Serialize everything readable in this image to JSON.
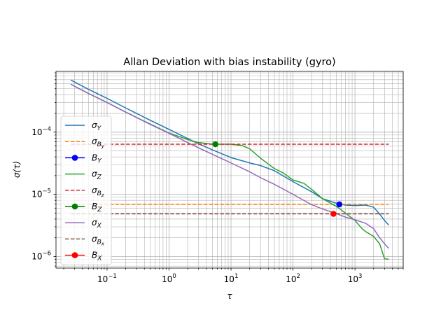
{
  "chart_data": {
    "type": "line",
    "title": "Allan Deviation with bias instability (gyro)",
    "xlabel": "τ",
    "ylabel": "σ(τ)",
    "xscale": "log",
    "yscale": "log",
    "xlim": [
      0.015,
      6000
    ],
    "ylim": [
      6.5e-07,
      0.00095
    ],
    "grid": "major and minor, both axes",
    "legend_position": "left",
    "x_ticks": [
      {
        "value": 0.1,
        "base": "10",
        "exp": "−1"
      },
      {
        "value": 1,
        "base": "10",
        "exp": "0"
      },
      {
        "value": 10,
        "base": "10",
        "exp": "1"
      },
      {
        "value": 100,
        "base": "10",
        "exp": "2"
      },
      {
        "value": 1000,
        "base": "10",
        "exp": "3"
      }
    ],
    "y_ticks": [
      {
        "value": 1e-06,
        "base": "10",
        "exp": "−6"
      },
      {
        "value": 1e-05,
        "base": "10",
        "exp": "−5"
      },
      {
        "value": 0.0001,
        "base": "10",
        "exp": "−4"
      }
    ],
    "series": [
      {
        "key": "sigma_y",
        "color": "#1f77b4",
        "style": "solid",
        "x": [
          0.026,
          0.05,
          0.1,
          0.2,
          0.5,
          1,
          2,
          3,
          5,
          10,
          20,
          30,
          50,
          100,
          200,
          300,
          500,
          700,
          1000,
          1500,
          2000,
          2500,
          3000,
          3500
        ],
        "y": [
          0.00069,
          0.00049,
          0.00035,
          0.000245,
          0.000155,
          0.000111,
          7.9e-05,
          6.5e-05,
          5.2e-05,
          3.9e-05,
          3.2e-05,
          2.9e-05,
          2.4e-05,
          1.6e-05,
          1.1e-05,
          8.5e-06,
          7.2e-06,
          6.7e-06,
          6.6e-06,
          6.7e-06,
          6.2e-06,
          4.8e-06,
          3.8e-06,
          3.2e-06
        ]
      },
      {
        "key": "sigma_by",
        "color": "#ff7f0e",
        "style": "dashed",
        "x": [
          0.026,
          3500
        ],
        "y": [
          6.9e-06,
          6.9e-06
        ]
      },
      {
        "key": "b_y",
        "color": "#0000ff",
        "style": "marker",
        "x": [
          560
        ],
        "y": [
          6.9e-06
        ]
      },
      {
        "key": "sigma_z",
        "color": "#2ca02c",
        "style": "solid",
        "x": [
          0.026,
          0.05,
          0.1,
          0.2,
          0.5,
          1,
          2,
          3,
          5,
          8,
          10,
          15,
          20,
          30,
          50,
          70,
          100,
          150,
          200,
          300,
          500,
          700,
          1000,
          1300,
          1500,
          2000,
          2500,
          3000,
          3500
        ],
        "y": [
          0.00059,
          0.00042,
          0.0003,
          0.00021,
          0.000135,
          9.7e-05,
          7.6e-05,
          6.8e-05,
          6.4e-05,
          6.4e-05,
          6.4e-05,
          6.1e-05,
          5.4e-05,
          3.8e-05,
          2.6e-05,
          2.2e-05,
          1.7e-05,
          1.5e-05,
          1.2e-05,
          8.5e-06,
          6.4e-06,
          5e-06,
          3.8e-06,
          2.8e-06,
          2.5e-06,
          2.1e-06,
          1.6e-06,
          9.2e-07,
          9e-07
        ]
      },
      {
        "key": "sigma_bz",
        "color": "#d62728",
        "style": "dashed",
        "x": [
          0.026,
          3500
        ],
        "y": [
          6.4e-05,
          6.4e-05
        ]
      },
      {
        "key": "b_z",
        "color": "#008000",
        "style": "marker",
        "x": [
          5.6
        ],
        "y": [
          6.4e-05
        ]
      },
      {
        "key": "sigma_x",
        "color": "#9467bd",
        "style": "solid",
        "x": [
          0.026,
          0.05,
          0.1,
          0.2,
          0.5,
          1,
          2,
          3,
          5,
          10,
          20,
          30,
          50,
          100,
          200,
          300,
          500,
          700,
          1000,
          1500,
          2000,
          2500,
          3000,
          3500
        ],
        "y": [
          0.00059,
          0.00042,
          0.0003,
          0.00021,
          0.000133,
          9.6e-05,
          6.8e-05,
          5.6e-05,
          4.4e-05,
          3.2e-05,
          2.3e-05,
          1.85e-05,
          1.45e-05,
          1e-05,
          6.8e-06,
          5.8e-06,
          4.9e-06,
          4.3e-06,
          3.9e-06,
          3.4e-06,
          2.8e-06,
          2e-06,
          1.6e-06,
          1.35e-06
        ]
      },
      {
        "key": "sigma_bx",
        "color": "#8c564b",
        "style": "dashed",
        "x": [
          0.026,
          3500
        ],
        "y": [
          4.85e-06,
          4.85e-06
        ]
      },
      {
        "key": "b_x",
        "color": "#ff0000",
        "style": "marker",
        "x": [
          450
        ],
        "y": [
          4.85e-06
        ]
      }
    ],
    "legend": [
      {
        "series": "sigma_y",
        "symbol": "σ",
        "sub": "Y",
        "sub2": ""
      },
      {
        "series": "sigma_by",
        "symbol": "σ",
        "sub": "B",
        "sub2": "y"
      },
      {
        "series": "b_y",
        "symbol": "B",
        "sub": "Y",
        "sub2": ""
      },
      {
        "series": "sigma_z",
        "symbol": "σ",
        "sub": "Z",
        "sub2": ""
      },
      {
        "series": "sigma_bz",
        "symbol": "σ",
        "sub": "B",
        "sub2": "z"
      },
      {
        "series": "b_z",
        "symbol": "B",
        "sub": "Z",
        "sub2": ""
      },
      {
        "series": "sigma_x",
        "symbol": "σ",
        "sub": "X",
        "sub2": ""
      },
      {
        "series": "sigma_bx",
        "symbol": "σ",
        "sub": "B",
        "sub2": "x"
      },
      {
        "series": "b_x",
        "symbol": "B",
        "sub": "X",
        "sub2": ""
      }
    ]
  }
}
